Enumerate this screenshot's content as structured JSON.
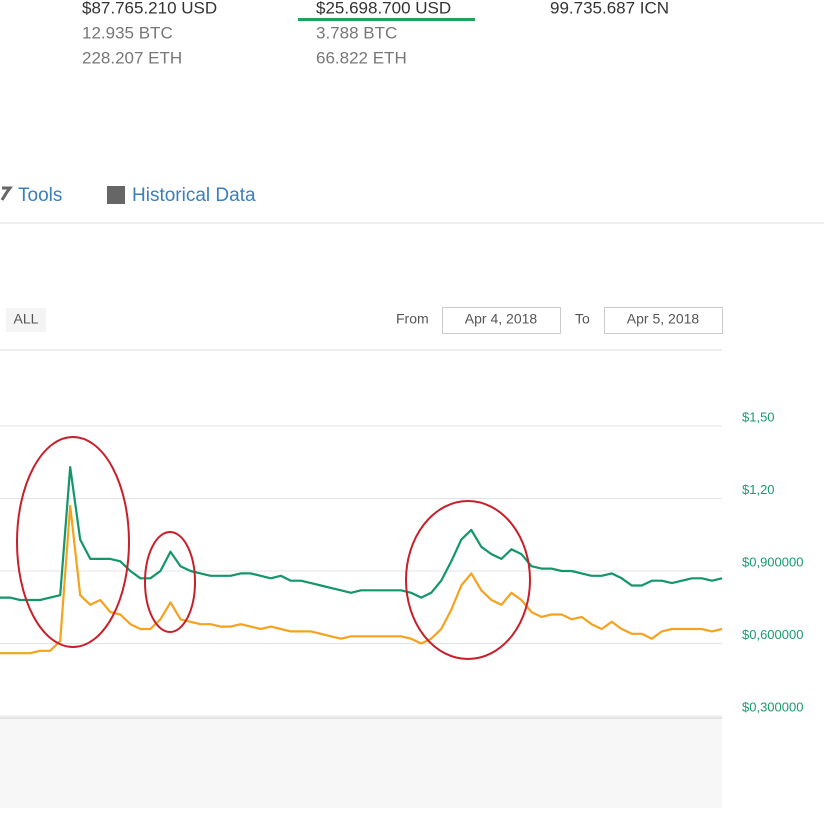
{
  "header": {
    "stats": [
      [
        "$87.765.210 USD",
        "12.935 BTC",
        "228.207 ETH"
      ],
      [
        "$25.698.700 USD",
        "3.788 BTC",
        "66.822 ETH"
      ],
      [
        "99.735.687 ICN"
      ]
    ]
  },
  "tabs": [
    "Tools",
    "Historical Data"
  ],
  "range": {
    "button": "ALL",
    "from_label": "From",
    "from": "Apr 4, 2018",
    "to_label": "To",
    "to": "Apr 5, 2018"
  },
  "chart_data": {
    "type": "line",
    "series": [
      {
        "color": "#12966a",
        "values": [
          0.79,
          0.79,
          0.78,
          0.78,
          0.78,
          0.79,
          0.8,
          1.33,
          1.03,
          0.95,
          0.95,
          0.95,
          0.94,
          0.9,
          0.87,
          0.87,
          0.9,
          0.98,
          0.92,
          0.9,
          0.89,
          0.88,
          0.88,
          0.88,
          0.89,
          0.89,
          0.88,
          0.87,
          0.88,
          0.86,
          0.86,
          0.85,
          0.84,
          0.83,
          0.82,
          0.81,
          0.82,
          0.82,
          0.82,
          0.82,
          0.82,
          0.81,
          0.79,
          0.81,
          0.86,
          0.94,
          1.03,
          1.07,
          1.0,
          0.97,
          0.95,
          0.99,
          0.97,
          0.92,
          0.91,
          0.91,
          0.9,
          0.9,
          0.89,
          0.88,
          0.88,
          0.89,
          0.87,
          0.84,
          0.84,
          0.86,
          0.86,
          0.85,
          0.86,
          0.87,
          0.87,
          0.86,
          0.87
        ]
      },
      {
        "color": "#f5a21f",
        "values": [
          0.56,
          0.56,
          0.56,
          0.56,
          0.57,
          0.57,
          0.61,
          1.17,
          0.8,
          0.76,
          0.78,
          0.73,
          0.72,
          0.68,
          0.66,
          0.66,
          0.7,
          0.77,
          0.7,
          0.69,
          0.68,
          0.68,
          0.67,
          0.67,
          0.68,
          0.67,
          0.66,
          0.67,
          0.66,
          0.65,
          0.65,
          0.65,
          0.64,
          0.63,
          0.62,
          0.63,
          0.63,
          0.63,
          0.63,
          0.63,
          0.63,
          0.62,
          0.6,
          0.62,
          0.66,
          0.74,
          0.84,
          0.89,
          0.82,
          0.78,
          0.76,
          0.81,
          0.78,
          0.73,
          0.71,
          0.72,
          0.72,
          0.7,
          0.71,
          0.68,
          0.66,
          0.69,
          0.66,
          0.64,
          0.64,
          0.62,
          0.65,
          0.66,
          0.66,
          0.66,
          0.66,
          0.65,
          0.66
        ]
      }
    ],
    "ylim": [
      0.3,
      1.5
    ],
    "yticks": [
      {
        "value": 1.5,
        "label": "$1,50"
      },
      {
        "value": 1.2,
        "label": "$1,20"
      },
      {
        "value": 0.9,
        "label": "$0,900000"
      },
      {
        "value": 0.6,
        "label": "$0,600000"
      },
      {
        "value": 0.3,
        "label": "$0,300000"
      }
    ],
    "grid": true
  }
}
